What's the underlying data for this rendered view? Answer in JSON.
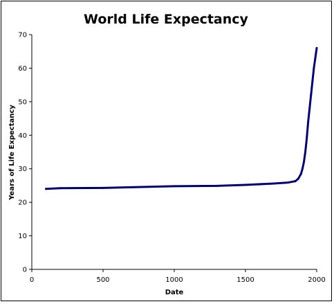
{
  "chart_data": {
    "type": "line",
    "title": "World Life Expectancy",
    "xlabel": "Date",
    "ylabel": "Years of Life Expectancy",
    "xlim": [
      0,
      2000
    ],
    "ylim": [
      0,
      70
    ],
    "xticks": [
      "0",
      "500",
      "1000",
      "1500",
      "2000"
    ],
    "yticks": [
      "0",
      "10",
      "20",
      "30",
      "40",
      "50",
      "60",
      "70"
    ],
    "grid": false,
    "legend": "none",
    "series": [
      {
        "color": "#000066",
        "x": [
          100,
          200,
          500,
          700,
          1000,
          1300,
          1500,
          1700,
          1800,
          1850,
          1870,
          1890,
          1900,
          1910,
          1920,
          1930,
          1940,
          1950,
          1960,
          1970,
          1980,
          1990,
          2000
        ],
        "y": [
          24,
          24.2,
          24.3,
          24.5,
          24.8,
          24.9,
          25.2,
          25.6,
          25.9,
          26.3,
          27,
          28.5,
          30,
          32,
          35,
          39,
          44,
          48,
          52,
          56,
          60,
          63,
          66
        ]
      }
    ]
  }
}
